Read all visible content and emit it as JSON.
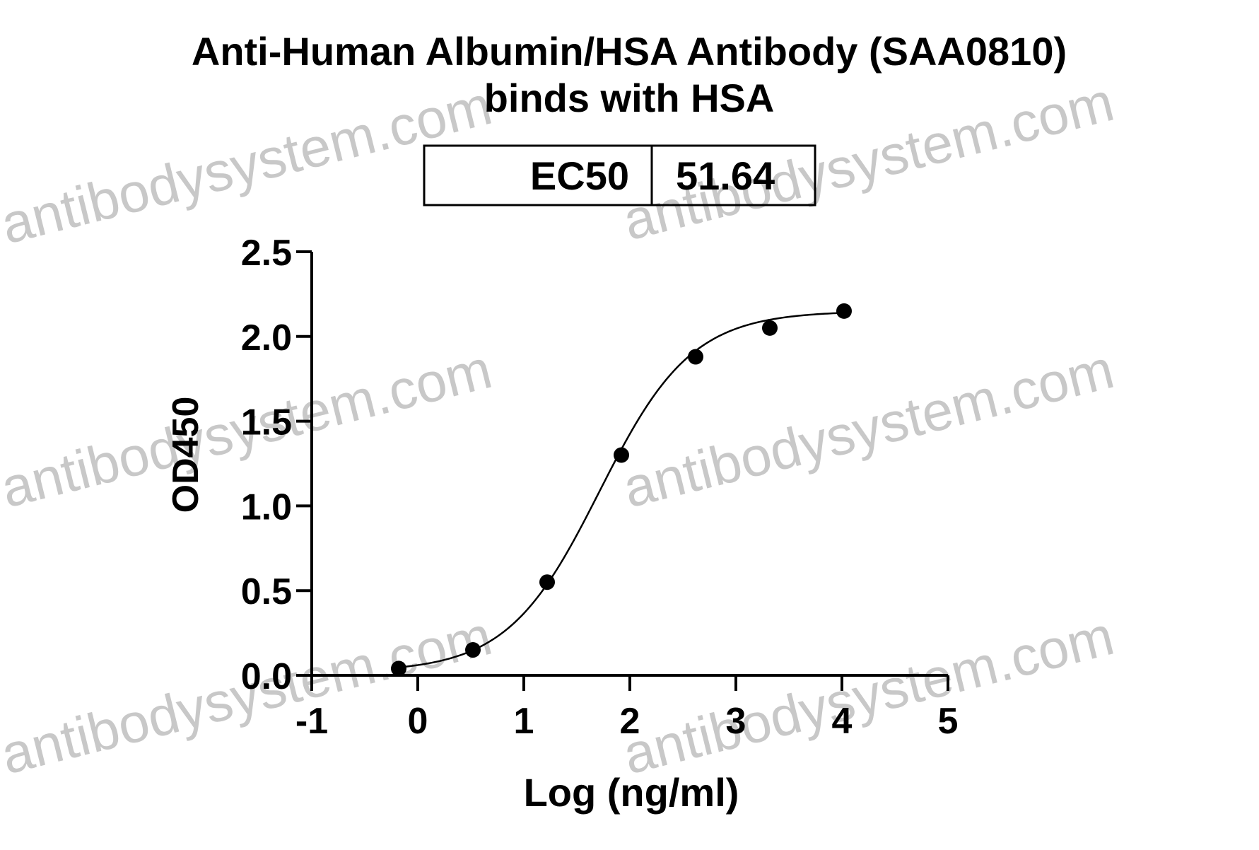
{
  "watermark": "antibodysystem.com",
  "chart_data": {
    "type": "scatter",
    "title": "Anti-Human Albumin/HSA Antibody (SAA0810)",
    "subtitle": "binds with HSA",
    "annotation_table": {
      "label": "EC50",
      "value": "51.64"
    },
    "xlabel": "Log (ng/ml)",
    "ylabel": "OD450",
    "xlim": [
      -1,
      5
    ],
    "ylim": [
      0,
      2.5
    ],
    "x_ticks": [
      -1,
      0,
      1,
      2,
      3,
      4,
      5
    ],
    "x_tick_labels": [
      "-1",
      "0",
      "1",
      "2",
      "3",
      "4",
      "5"
    ],
    "y_ticks": [
      0,
      0.5,
      1,
      1.5,
      2,
      2.5
    ],
    "y_tick_labels": [
      "0.0",
      "0.5",
      "1.0",
      "1.5",
      "2.0",
      "2.5"
    ],
    "grid": false,
    "legend": "none",
    "series": [
      {
        "points": [
          {
            "x": -0.18,
            "y": 0.04
          },
          {
            "x": 0.52,
            "y": 0.15
          },
          {
            "x": 1.22,
            "y": 0.55
          },
          {
            "x": 1.92,
            "y": 1.3
          },
          {
            "x": 2.62,
            "y": 1.88
          },
          {
            "x": 3.32,
            "y": 2.05
          },
          {
            "x": 4.02,
            "y": 2.15
          }
        ],
        "fit": {
          "model": "4PL",
          "bottom": 0.02,
          "top": 2.15,
          "logEC50": 1.713,
          "hill": 1.0
        }
      }
    ],
    "colors": {
      "marks": "#000000",
      "watermark": "#c8c8c8"
    }
  }
}
